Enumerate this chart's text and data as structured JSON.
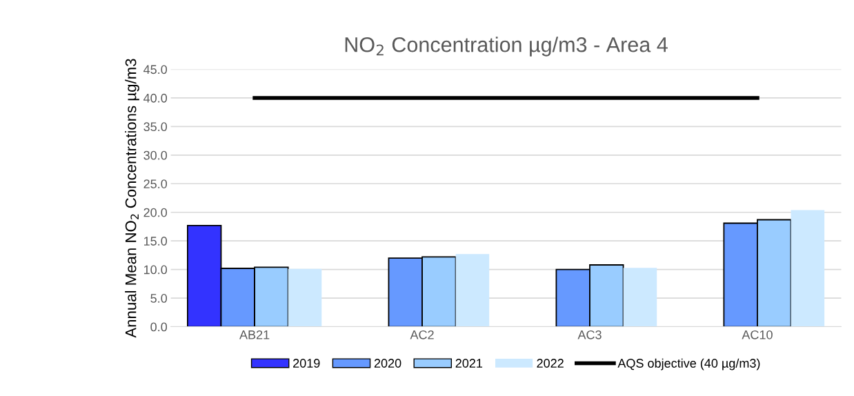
{
  "chart_data": {
    "type": "bar",
    "title": "NO$_{2}$ Concentration µg/m3 - Area 4",
    "ylabel": "Annual Mean NO$_{2}$ Concentrations µg/m3",
    "categories": [
      "AB21",
      "AC2",
      "AC3",
      "AC10"
    ],
    "series": [
      {
        "name": "2019",
        "color": "#3333ff",
        "values": [
          17.7,
          null,
          null,
          null
        ]
      },
      {
        "name": "2020",
        "color": "#6699ff",
        "values": [
          10.2,
          12.0,
          10.0,
          18.1
        ]
      },
      {
        "name": "2021",
        "color": "#99ccff",
        "values": [
          10.4,
          12.2,
          10.8,
          18.7
        ]
      },
      {
        "name": "2022",
        "color": "#cce9ff",
        "values": [
          10.1,
          12.7,
          10.3,
          20.4
        ]
      },
      {
        "name": "AQS objective (40 µg/m3)",
        "type": "line",
        "color": "#000000",
        "values": [
          40,
          40,
          40,
          40
        ]
      }
    ],
    "ylim": [
      0,
      45
    ],
    "yticks": [
      {
        "value": 0,
        "label": "0.0"
      },
      {
        "value": 5,
        "label": "5.0"
      },
      {
        "value": 10,
        "label": "10.0"
      },
      {
        "value": 15,
        "label": "15.0"
      },
      {
        "value": 20,
        "label": "20.0"
      },
      {
        "value": 25,
        "label": "25.0"
      },
      {
        "value": 30,
        "label": "30.0"
      },
      {
        "value": 35,
        "label": "35.0"
      },
      {
        "value": 40,
        "label": "40.0"
      },
      {
        "value": 45,
        "label": "45.0"
      }
    ],
    "grid": "y",
    "legend": "bottom",
    "marker": "none"
  }
}
